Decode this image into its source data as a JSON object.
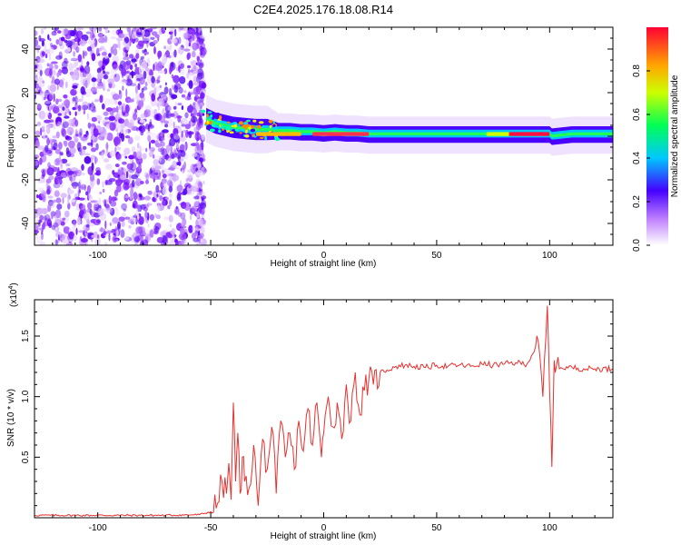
{
  "title": "C2E4.2025.176.18.08.R14",
  "chart_data": [
    {
      "type": "heatmap",
      "xlabel": "Height of straight line (km)",
      "ylabel": "Frequency (Hz)",
      "xlim": [
        -128,
        128
      ],
      "ylim": [
        -50,
        50
      ],
      "xticks": [
        -100,
        -50,
        0,
        50,
        100
      ],
      "yticks": [
        -40,
        -20,
        0,
        20,
        40
      ],
      "colorbar": {
        "label": "Normalized spectral amplitude",
        "range": [
          0.0,
          1.0
        ],
        "ticks": [
          0.0,
          0.2,
          0.4,
          0.6,
          0.8
        ]
      },
      "noise_region_x": [
        -128,
        -53
      ],
      "signal_band_center": [
        [
          -52,
          8
        ],
        [
          -48,
          6
        ],
        [
          -44,
          5
        ],
        [
          -40,
          4
        ],
        [
          -35,
          3.5
        ],
        [
          -30,
          3
        ],
        [
          -25,
          3
        ],
        [
          -20,
          2.5
        ],
        [
          -15,
          2.5
        ],
        [
          -10,
          2
        ],
        [
          -5,
          2
        ],
        [
          0,
          1.5
        ],
        [
          5,
          2
        ],
        [
          10,
          1.5
        ],
        [
          15,
          1.5
        ],
        [
          20,
          1
        ],
        [
          30,
          1
        ],
        [
          40,
          1
        ],
        [
          50,
          1
        ],
        [
          60,
          1
        ],
        [
          70,
          1
        ],
        [
          80,
          1
        ],
        [
          90,
          1
        ],
        [
          100,
          1
        ],
        [
          101,
          0
        ],
        [
          110,
          1
        ],
        [
          120,
          1
        ],
        [
          128,
          1
        ]
      ],
      "peak_amplitude_segments": [
        {
          "x": [
            -30,
            -10
          ],
          "amplitude": 0.8
        },
        {
          "x": [
            -5,
            20
          ],
          "amplitude": 0.9
        },
        {
          "x": [
            72,
            82
          ],
          "amplitude": 0.6
        },
        {
          "x": [
            82,
            100
          ],
          "amplitude": 1.0
        }
      ]
    },
    {
      "type": "line",
      "xlabel": "Height of straight line (km)",
      "ylabel": "SNR (10 * v/v)",
      "y_multiplier_label": "(x10",
      "y_multiplier_exponent": "4",
      "xlim": [
        -128,
        128
      ],
      "ylim": [
        0,
        1.8
      ],
      "xticks": [
        -100,
        -50,
        0,
        50,
        100
      ],
      "yticks": [
        0.5,
        1.0,
        1.5
      ],
      "color": "#e8312f",
      "series": [
        {
          "x": [
            -128,
            -110,
            -90,
            -70,
            -55,
            -50,
            -47,
            -45,
            -43,
            -42,
            -41,
            -40,
            -39,
            -38,
            -37,
            -36,
            -35,
            -33,
            -31,
            -29,
            -27,
            -25,
            -23,
            -21,
            -19,
            -17,
            -15,
            -13,
            -11,
            -9,
            -7,
            -5,
            -3,
            -1,
            0,
            2,
            4,
            6,
            8,
            10,
            12,
            14,
            16,
            18,
            20,
            22,
            25,
            28,
            32,
            36,
            40,
            45,
            50,
            55,
            60,
            65,
            70,
            75,
            80,
            85,
            90,
            95,
            97,
            99,
            100,
            101,
            102,
            103,
            105,
            110,
            115,
            120,
            128
          ],
          "y": [
            0.02,
            0.02,
            0.02,
            0.02,
            0.025,
            0.05,
            0.12,
            0.3,
            0.2,
            0.45,
            0.15,
            0.95,
            0.3,
            0.7,
            0.2,
            0.5,
            0.3,
            0.25,
            0.6,
            0.1,
            0.65,
            0.4,
            0.75,
            0.2,
            0.8,
            0.5,
            0.7,
            0.4,
            0.8,
            0.55,
            0.9,
            0.6,
            0.95,
            0.5,
            0.7,
            1.0,
            0.75,
            0.95,
            0.65,
            1.1,
            0.8,
            1.2,
            0.85,
            1.05,
            1.15,
            1.1,
            1.2,
            1.22,
            1.25,
            1.26,
            1.25,
            1.24,
            1.26,
            1.25,
            1.26,
            1.25,
            1.27,
            1.26,
            1.27,
            1.28,
            1.27,
            1.45,
            1.0,
            1.75,
            1.05,
            0.42,
            1.3,
            1.25,
            1.24,
            1.24,
            1.23,
            1.23,
            1.23
          ]
        }
      ]
    }
  ]
}
